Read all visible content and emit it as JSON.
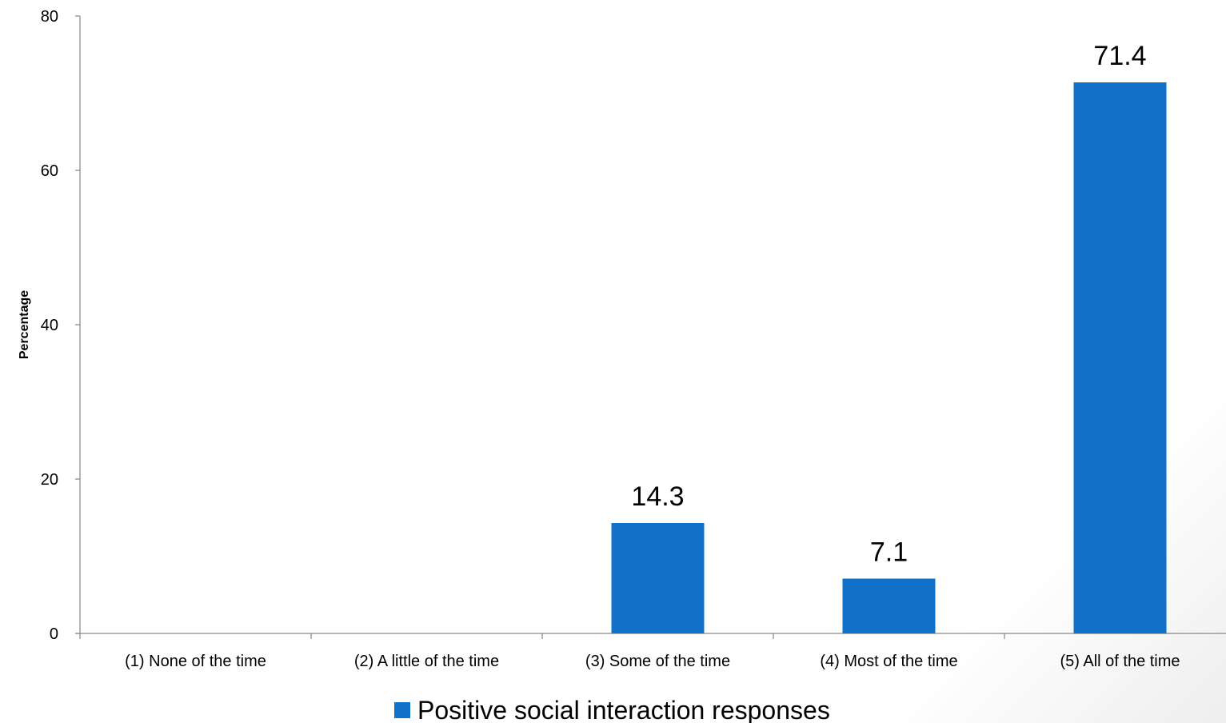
{
  "chart_data": {
    "type": "bar",
    "categories": [
      "(1) None of the time",
      "(2) A little of the time",
      "(3) Some of the time",
      "(4) Most of the time",
      "(5) All of the time"
    ],
    "series": [
      {
        "name": "Positive social interaction responses",
        "values": [
          0,
          0,
          14.3,
          7.1,
          71.4
        ],
        "data_labels": [
          null,
          null,
          "14.3",
          "7.1",
          "71.4"
        ],
        "color": "#1170C8"
      }
    ],
    "title": "",
    "xlabel": "",
    "ylabel": "Percentage",
    "ylim": [
      0,
      80
    ],
    "yticks": [
      "0",
      "20",
      "40",
      "60",
      "80"
    ],
    "grid": false,
    "legend": "bottom-center"
  }
}
